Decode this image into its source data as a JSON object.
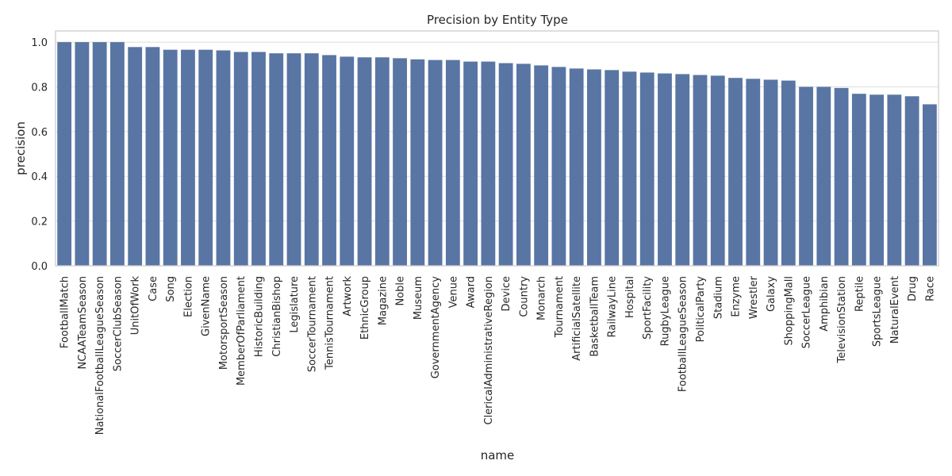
{
  "chart_data": {
    "type": "bar",
    "title": "Precision by Entity Type",
    "xlabel": "name",
    "ylabel": "precision",
    "ylim": [
      0,
      1.05
    ],
    "yticks": [
      0.0,
      0.2,
      0.4,
      0.6,
      0.8,
      1.0
    ],
    "ytick_labels": [
      "0.0",
      "0.2",
      "0.4",
      "0.6",
      "0.8",
      "1.0"
    ],
    "grid": "horizontal",
    "bar_color": "#5875a4",
    "categories": [
      "FootballMatch",
      "NCAATeamSeason",
      "NationalFootballLeagueSeason",
      "SoccerClubSeason",
      "UnitOfWork",
      "Case",
      "Song",
      "Election",
      "GivenName",
      "MotorsportSeason",
      "MemberOfParliament",
      "HistoricBuilding",
      "ChristianBishop",
      "Legislature",
      "SoccerTournament",
      "TennisTournament",
      "Artwork",
      "EthnicGroup",
      "Magazine",
      "Noble",
      "Museum",
      "GovernmentAgency",
      "Venue",
      "Award",
      "ClericalAdministrativeRegion",
      "Device",
      "Country",
      "Monarch",
      "Tournament",
      "ArtificialSatellite",
      "BasketballTeam",
      "RailwayLine",
      "Hospital",
      "SportFacility",
      "RugbyLeague",
      "FootballLeagueSeason",
      "PoliticalParty",
      "Stadium",
      "Enzyme",
      "Wrestler",
      "Galaxy",
      "ShoppingMall",
      "SoccerLeague",
      "Amphibian",
      "TelevisionStation",
      "Reptile",
      "SportsLeague",
      "NaturalEvent",
      "Drug",
      "Race"
    ],
    "values": [
      1.0,
      1.0,
      1.0,
      1.0,
      0.978,
      0.978,
      0.966,
      0.966,
      0.966,
      0.963,
      0.956,
      0.956,
      0.95,
      0.95,
      0.95,
      0.942,
      0.935,
      0.932,
      0.932,
      0.928,
      0.923,
      0.92,
      0.92,
      0.913,
      0.913,
      0.906,
      0.903,
      0.896,
      0.889,
      0.882,
      0.878,
      0.875,
      0.868,
      0.864,
      0.86,
      0.857,
      0.853,
      0.85,
      0.84,
      0.836,
      0.832,
      0.828,
      0.8,
      0.8,
      0.795,
      0.769,
      0.765,
      0.765,
      0.758,
      0.722
    ]
  }
}
